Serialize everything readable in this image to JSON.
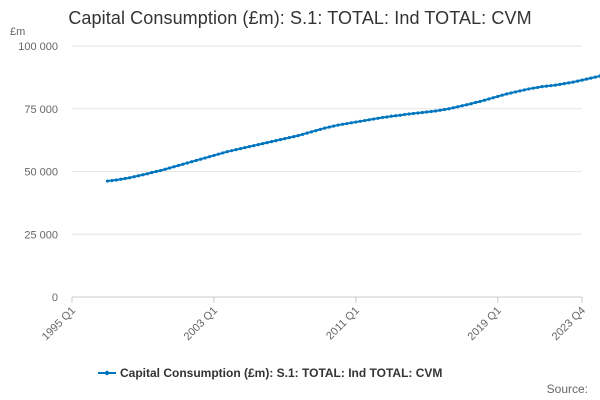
{
  "chart_data": {
    "type": "line",
    "title": "Capital Consumption (£m): S.1: TOTAL: Ind TOTAL: CVM",
    "unit_label": "£m",
    "source_label": "Source:",
    "ylim": [
      0,
      100000
    ],
    "y_ticks": [
      {
        "value": 0,
        "label": "0"
      },
      {
        "value": 25000,
        "label": "25 000"
      },
      {
        "value": 50000,
        "label": "50 000"
      },
      {
        "value": 75000,
        "label": "75 000"
      },
      {
        "value": 100000,
        "label": "100 000"
      }
    ],
    "x_range": [
      "1995 Q1",
      "2023 Q4"
    ],
    "x_ticks": [
      "1995 Q1",
      "2003 Q1",
      "2011 Q1",
      "2019 Q1",
      "2023 Q4"
    ],
    "grid": "horizontal",
    "legend_position": "bottom",
    "color": "#0075bf",
    "series": [
      {
        "name": "Capital Consumption (£m): S.1: TOTAL: Ind TOTAL: CVM",
        "start": "1997 Q1",
        "end": "2023 Q4",
        "values": [
          46200,
          46400,
          46600,
          46900,
          47200,
          47500,
          47900,
          48300,
          48700,
          49100,
          49600,
          50000,
          50400,
          50900,
          51400,
          51900,
          52400,
          52900,
          53400,
          53900,
          54400,
          54900,
          55400,
          55900,
          56400,
          56900,
          57400,
          57900,
          58300,
          58700,
          59100,
          59500,
          59900,
          60300,
          60700,
          61100,
          61500,
          61900,
          62300,
          62700,
          63100,
          63500,
          63900,
          64300,
          64800,
          65300,
          65800,
          66300,
          66800,
          67300,
          67700,
          68100,
          68500,
          68800,
          69100,
          69400,
          69700,
          70000,
          70300,
          70600,
          70900,
          71200,
          71500,
          71700,
          72000,
          72200,
          72400,
          72700,
          72900,
          73100,
          73300,
          73500,
          73700,
          73900,
          74100,
          74400,
          74700,
          75000,
          75400,
          75800,
          76200,
          76600,
          77000,
          77500,
          77900,
          78400,
          78900,
          79400,
          79900,
          80400,
          80900,
          81300,
          81700,
          82100,
          82500,
          82900,
          83200,
          83500,
          83800,
          84000,
          84200,
          84400,
          84700,
          85000,
          85300,
          85600,
          86000,
          86400,
          86800,
          87200,
          87600,
          88000,
          91000,
          91600,
          92000,
          92400
        ]
      }
    ]
  }
}
